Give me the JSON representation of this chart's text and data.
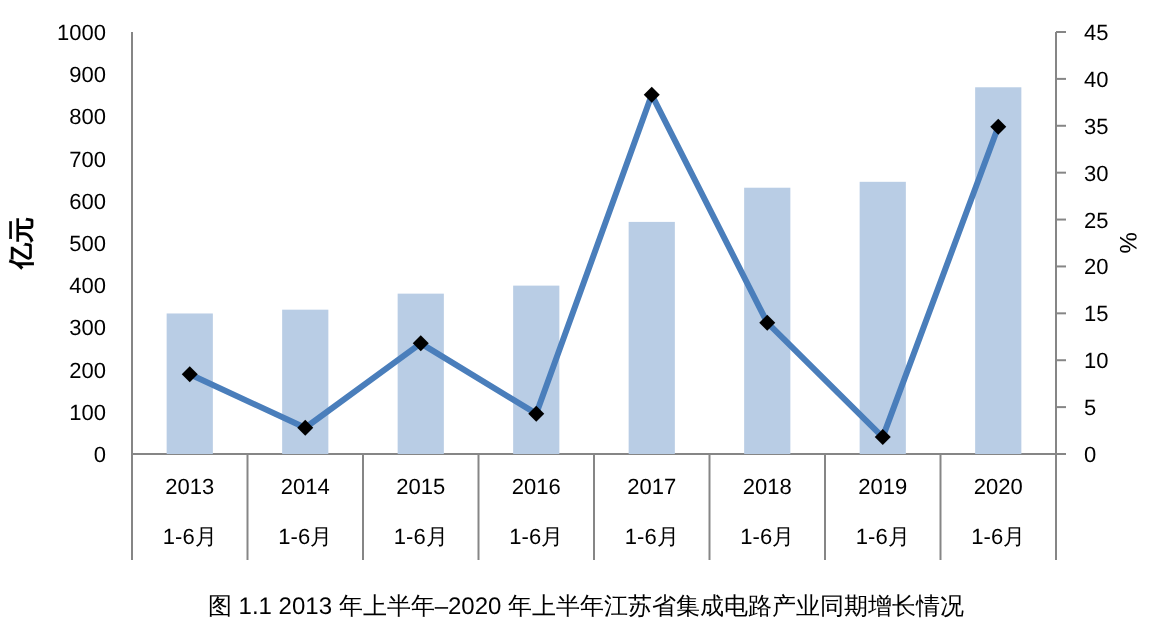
{
  "chart_data": {
    "type": "bar",
    "title": "图 1.1   2013 年上半年–2020 年上半年江苏省集成电路产业同期增长情况",
    "ylabel": "亿元",
    "y2label": "%",
    "categories": [
      "2013\n1-6月",
      "2014\n1-6月",
      "2015\n1-6月",
      "2016\n1-6月",
      "2017\n1-6月",
      "2018\n1-6月",
      "2019\n1-6月",
      "2020\n1-6月"
    ],
    "series": [
      {
        "color": "#b9cde5",
        "values": [
          333,
          342,
          380,
          399,
          550,
          631,
          645,
          869
        ]
      },
      {
        "type": "line",
        "axis": "y2",
        "color": "#4a7ebb",
        "marker": "diamond",
        "line_style": "solid",
        "values": [
          8.5,
          2.8,
          11.8,
          4.3,
          38.3,
          14.0,
          1.8,
          34.9
        ]
      }
    ],
    "ylim": [
      0,
      1000
    ],
    "yticks": [
      0,
      100,
      200,
      300,
      400,
      500,
      600,
      700,
      800,
      900,
      1000
    ],
    "y2lim": [
      0,
      45
    ],
    "y2ticks": [
      0,
      5,
      10,
      15,
      20,
      25,
      30,
      35,
      40,
      45
    ],
    "grid": false
  }
}
